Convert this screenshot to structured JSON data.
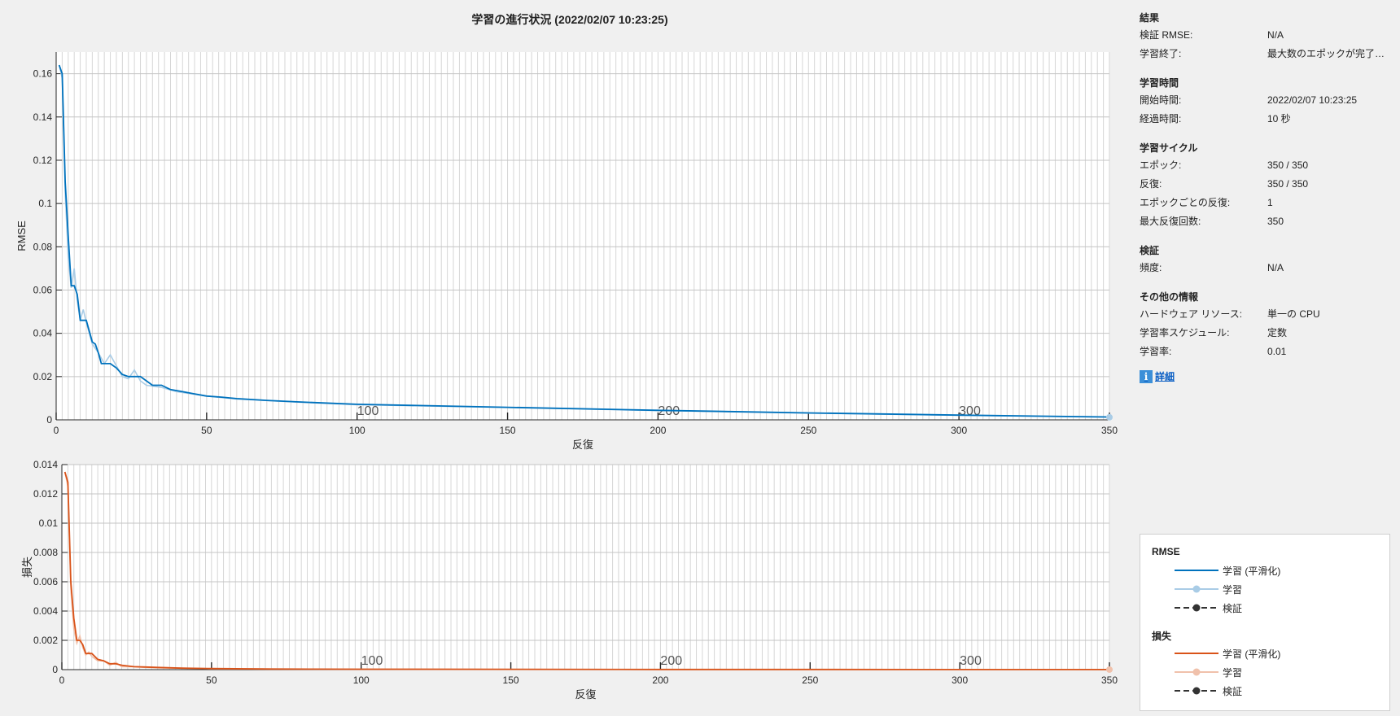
{
  "title": "学習の進行状況 (2022/02/07 10:23:25)",
  "results": {
    "heading": "結果",
    "rows": [
      {
        "label": "検証 RMSE:",
        "value": "N/A"
      },
      {
        "label": "学習終了:",
        "value": "最大数のエポックが完了し..."
      }
    ]
  },
  "training_time": {
    "heading": "学習時間",
    "rows": [
      {
        "label": "開始時間:",
        "value": "2022/02/07 10:23:25"
      },
      {
        "label": "経過時間:",
        "value": "10 秒"
      }
    ]
  },
  "training_cycle": {
    "heading": "学習サイクル",
    "rows": [
      {
        "label": "エポック:",
        "value": "350 / 350"
      },
      {
        "label": "反復:",
        "value": "350 / 350"
      },
      {
        "label": "エポックごとの反復:",
        "value": "1"
      },
      {
        "label": "最大反復回数:",
        "value": "350"
      }
    ]
  },
  "validation": {
    "heading": "検証",
    "rows": [
      {
        "label": "頻度:",
        "value": "N/A"
      }
    ]
  },
  "other_info": {
    "heading": "その他の情報",
    "rows": [
      {
        "label": "ハードウェア リソース:",
        "value": "単一の CPU"
      },
      {
        "label": "学習率スケジュール:",
        "value": "定数"
      },
      {
        "label": "学習率:",
        "value": "0.01"
      }
    ]
  },
  "details_link": "詳細",
  "legend": {
    "rmse_title": "RMSE",
    "loss_title": "損失",
    "items": {
      "smoothed": "学習 (平滑化)",
      "training": "学習",
      "validation": "検証"
    }
  },
  "colors": {
    "rmse_smoothed": "#0072bd",
    "rmse_raw": "#a9cce6",
    "loss_smoothed": "#d95319",
    "loss_raw": "#f0c1ab",
    "validation": "#333333"
  },
  "chart_data": [
    {
      "type": "line",
      "xlabel": "反復",
      "ylabel": "RMSE",
      "xlim": [
        0,
        350
      ],
      "ylim": [
        0,
        0.17
      ],
      "xticks": [
        0,
        50,
        100,
        150,
        200,
        250,
        300,
        350
      ],
      "yticks": [
        0,
        0.02,
        0.04,
        0.06,
        0.08,
        0.1,
        0.12,
        0.14,
        0.16
      ],
      "epoch_labels": [
        100,
        200,
        300
      ],
      "grid": true,
      "series": [
        {
          "name": "学習 (平滑化)",
          "x": [
            1,
            2,
            3,
            4,
            5,
            6,
            7,
            8,
            9,
            10,
            12,
            13,
            14,
            15,
            16,
            17,
            18,
            20,
            22,
            24,
            26,
            28,
            30,
            32,
            35,
            38,
            42,
            46,
            50,
            55,
            60,
            70,
            80,
            100,
            150,
            200,
            250,
            300,
            350
          ],
          "y": [
            0.164,
            0.16,
            0.11,
            0.085,
            0.062,
            0.062,
            0.058,
            0.046,
            0.046,
            0.046,
            0.036,
            0.035,
            0.031,
            0.026,
            0.026,
            0.026,
            0.026,
            0.024,
            0.021,
            0.02,
            0.02,
            0.02,
            0.018,
            0.016,
            0.016,
            0.014,
            0.013,
            0.012,
            0.011,
            0.0105,
            0.0098,
            0.009,
            0.0083,
            0.0072,
            0.0058,
            0.0044,
            0.0032,
            0.0022,
            0.0013
          ]
        },
        {
          "name": "学習",
          "x": [
            1,
            2,
            3,
            4,
            5,
            6,
            7,
            8,
            9,
            10,
            12,
            14,
            16,
            18,
            20,
            22,
            24,
            26,
            28,
            30,
            35,
            40,
            50,
            60,
            80,
            100,
            150,
            200,
            250,
            300,
            350
          ],
          "y": [
            0.164,
            0.158,
            0.105,
            0.075,
            0.061,
            0.07,
            0.055,
            0.046,
            0.051,
            0.045,
            0.035,
            0.031,
            0.026,
            0.03,
            0.025,
            0.02,
            0.019,
            0.023,
            0.018,
            0.016,
            0.015,
            0.013,
            0.011,
            0.0096,
            0.0082,
            0.007,
            0.0057,
            0.0043,
            0.0031,
            0.0021,
            0.0012
          ]
        }
      ]
    },
    {
      "type": "line",
      "xlabel": "反復",
      "ylabel": "損失",
      "xlim": [
        0,
        350
      ],
      "ylim": [
        0,
        0.014
      ],
      "xticks": [
        0,
        50,
        100,
        150,
        200,
        250,
        300,
        350
      ],
      "yticks": [
        0,
        0.002,
        0.004,
        0.006,
        0.008,
        0.01,
        0.012,
        0.014
      ],
      "epoch_labels": [
        100,
        200,
        300
      ],
      "grid": true,
      "series": [
        {
          "name": "学習 (平滑化)",
          "x": [
            1,
            2,
            3,
            4,
            5,
            6,
            7,
            8,
            9,
            10,
            12,
            14,
            16,
            18,
            20,
            24,
            28,
            32,
            40,
            50,
            70,
            100,
            150,
            200,
            250,
            300,
            350
          ],
          "y": [
            0.0135,
            0.0128,
            0.006,
            0.0035,
            0.002,
            0.002,
            0.0017,
            0.0011,
            0.0011,
            0.0011,
            0.0007,
            0.0006,
            0.0004,
            0.0004,
            0.0003,
            0.0002,
            0.00018,
            0.00015,
            0.0001,
            7e-05,
            4e-05,
            3e-05,
            2e-05,
            1e-05,
            1e-05,
            5e-06,
            3e-06
          ]
        },
        {
          "name": "学習",
          "x": [
            1,
            2,
            3,
            4,
            5,
            6,
            7,
            8,
            9,
            10,
            12,
            14,
            16,
            18,
            20,
            24,
            28,
            32,
            40,
            50,
            100,
            200,
            350
          ],
          "y": [
            0.0135,
            0.0125,
            0.0055,
            0.0028,
            0.0018,
            0.0023,
            0.0015,
            0.001,
            0.0012,
            0.0009,
            0.0006,
            0.0006,
            0.0003,
            0.0005,
            0.0002,
            0.0002,
            0.00015,
            0.00012,
            0.0001,
            6e-05,
            3e-05,
            1e-05,
            3e-06
          ]
        }
      ]
    }
  ]
}
